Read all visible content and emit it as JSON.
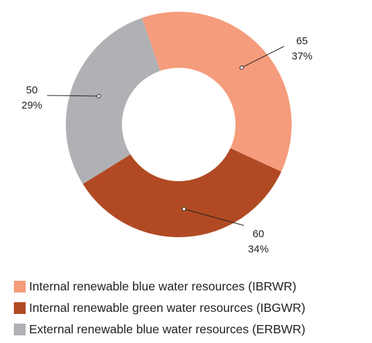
{
  "chart_data": {
    "type": "pie",
    "donut": true,
    "slices": [
      {
        "label": "Internal renewable blue water resources (IBRWR)",
        "value": 65,
        "percent": "37%",
        "color": "#f59c7c"
      },
      {
        "label": "Internal renewable green water resources (IBGWR)",
        "value": 60,
        "percent": "34%",
        "color": "#b14a24"
      },
      {
        "label": "External renewable blue water resources (ERBWR)",
        "value": 50,
        "percent": "29%",
        "color": "#b0b1b5"
      }
    ],
    "legend_position": "bottom"
  },
  "legend": {
    "items": [
      {
        "label": "Internal renewable blue water resources (IBRWR)",
        "color": "#f59c7c"
      },
      {
        "label": "Internal renewable green water resources (IBGWR)",
        "color": "#b14a24"
      },
      {
        "label": "External renewable blue water resources (ERBWR)",
        "color": "#b0b1b5"
      }
    ]
  }
}
